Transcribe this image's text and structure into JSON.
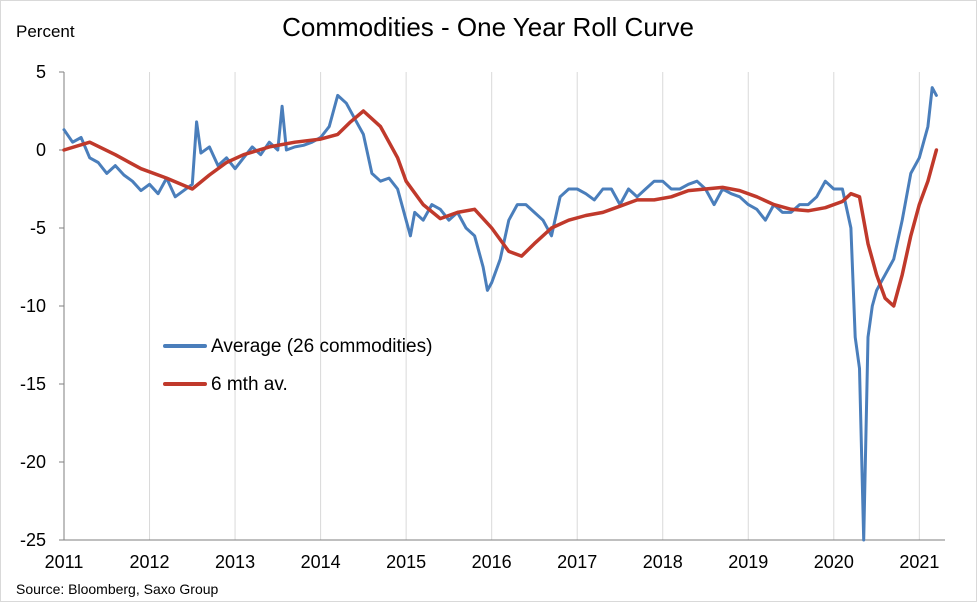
{
  "chart_data": {
    "type": "line",
    "title": "Commodities - One Year Roll Curve",
    "ylabel": "Percent",
    "xlabel": "",
    "source": "Source: Bloomberg, Saxo Group",
    "xlim": [
      2011,
      2021.3
    ],
    "ylim": [
      -25,
      5
    ],
    "x_ticks": [
      "2011",
      "2012",
      "2013",
      "2014",
      "2015",
      "2016",
      "2017",
      "2018",
      "2019",
      "2020",
      "2021"
    ],
    "y_ticks": [
      "5",
      "0",
      "-5",
      "-10",
      "-15",
      "-20",
      "-25"
    ],
    "grid": "vertical",
    "legend_position": "center-left",
    "series": [
      {
        "name": "Average (26 commodities)",
        "color": "#4a7ebb",
        "x": [
          2011.0,
          2011.1,
          2011.2,
          2011.3,
          2011.4,
          2011.5,
          2011.6,
          2011.7,
          2011.8,
          2011.9,
          2012.0,
          2012.1,
          2012.2,
          2012.3,
          2012.4,
          2012.5,
          2012.55,
          2012.6,
          2012.7,
          2012.8,
          2012.9,
          2013.0,
          2013.1,
          2013.2,
          2013.3,
          2013.4,
          2013.5,
          2013.55,
          2013.6,
          2013.7,
          2013.8,
          2013.9,
          2014.0,
          2014.1,
          2014.2,
          2014.3,
          2014.4,
          2014.5,
          2014.6,
          2014.7,
          2014.8,
          2014.9,
          2015.0,
          2015.05,
          2015.1,
          2015.2,
          2015.3,
          2015.4,
          2015.5,
          2015.6,
          2015.7,
          2015.8,
          2015.9,
          2015.95,
          2016.0,
          2016.1,
          2016.2,
          2016.3,
          2016.4,
          2016.5,
          2016.6,
          2016.7,
          2016.8,
          2016.9,
          2017.0,
          2017.1,
          2017.2,
          2017.3,
          2017.4,
          2017.5,
          2017.6,
          2017.7,
          2017.8,
          2017.9,
          2018.0,
          2018.1,
          2018.2,
          2018.3,
          2018.4,
          2018.5,
          2018.6,
          2018.7,
          2018.8,
          2018.9,
          2019.0,
          2019.1,
          2019.2,
          2019.3,
          2019.4,
          2019.5,
          2019.6,
          2019.7,
          2019.8,
          2019.9,
          2020.0,
          2020.1,
          2020.2,
          2020.25,
          2020.3,
          2020.35,
          2020.4,
          2020.45,
          2020.5,
          2020.55,
          2020.6,
          2020.7,
          2020.8,
          2020.9,
          2021.0,
          2021.05,
          2021.1,
          2021.15,
          2021.2
        ],
        "values": [
          1.3,
          0.5,
          0.8,
          -0.5,
          -0.8,
          -1.5,
          -1.0,
          -1.6,
          -2.0,
          -2.6,
          -2.2,
          -2.8,
          -1.8,
          -3.0,
          -2.6,
          -2.2,
          1.8,
          -0.2,
          0.2,
          -1.0,
          -0.5,
          -1.2,
          -0.5,
          0.2,
          -0.3,
          0.5,
          0.0,
          2.8,
          0.0,
          0.2,
          0.3,
          0.5,
          0.8,
          1.5,
          3.5,
          3.0,
          2.0,
          1.0,
          -1.5,
          -2.0,
          -1.8,
          -2.5,
          -4.5,
          -5.5,
          -4.0,
          -4.5,
          -3.5,
          -3.8,
          -4.5,
          -4.0,
          -5.0,
          -5.5,
          -7.5,
          -9.0,
          -8.5,
          -7.0,
          -4.5,
          -3.5,
          -3.5,
          -4.0,
          -4.5,
          -5.5,
          -3.0,
          -2.5,
          -2.5,
          -2.8,
          -3.2,
          -2.5,
          -2.5,
          -3.5,
          -2.5,
          -3.0,
          -2.5,
          -2.0,
          -2.0,
          -2.5,
          -2.5,
          -2.2,
          -2.0,
          -2.5,
          -3.5,
          -2.5,
          -2.8,
          -3.0,
          -3.5,
          -3.8,
          -4.5,
          -3.5,
          -4.0,
          -4.0,
          -3.5,
          -3.5,
          -3.0,
          -2.0,
          -2.5,
          -2.5,
          -5.0,
          -12.0,
          -14.0,
          -25.0,
          -12.0,
          -10.0,
          -9.0,
          -8.5,
          -8.0,
          -7.0,
          -4.5,
          -1.5,
          -0.5,
          0.5,
          1.5,
          4.0,
          3.5
        ]
      },
      {
        "name": "6 mth av.",
        "color": "#c0392b",
        "x": [
          2011.0,
          2011.3,
          2011.6,
          2011.9,
          2012.2,
          2012.5,
          2012.7,
          2012.9,
          2013.1,
          2013.4,
          2013.7,
          2014.0,
          2014.2,
          2014.35,
          2014.5,
          2014.7,
          2014.9,
          2015.0,
          2015.2,
          2015.4,
          2015.6,
          2015.8,
          2016.0,
          2016.2,
          2016.35,
          2016.5,
          2016.7,
          2016.9,
          2017.1,
          2017.3,
          2017.5,
          2017.7,
          2017.9,
          2018.1,
          2018.3,
          2018.5,
          2018.7,
          2018.9,
          2019.1,
          2019.3,
          2019.5,
          2019.7,
          2019.9,
          2020.1,
          2020.2,
          2020.3,
          2020.4,
          2020.5,
          2020.6,
          2020.7,
          2020.8,
          2020.9,
          2021.0,
          2021.1,
          2021.2
        ],
        "values": [
          0.0,
          0.5,
          -0.3,
          -1.2,
          -1.8,
          -2.5,
          -1.6,
          -0.8,
          -0.3,
          0.2,
          0.5,
          0.7,
          1.0,
          1.8,
          2.5,
          1.5,
          -0.5,
          -2.0,
          -3.5,
          -4.4,
          -4.0,
          -3.8,
          -5.0,
          -6.5,
          -6.8,
          -6.0,
          -5.0,
          -4.5,
          -4.2,
          -4.0,
          -3.6,
          -3.2,
          -3.2,
          -3.0,
          -2.6,
          -2.5,
          -2.4,
          -2.6,
          -3.0,
          -3.5,
          -3.8,
          -3.9,
          -3.7,
          -3.3,
          -2.8,
          -3.0,
          -6.0,
          -8.0,
          -9.5,
          -10.0,
          -8.0,
          -5.5,
          -3.5,
          -2.0,
          0.0
        ]
      }
    ]
  }
}
